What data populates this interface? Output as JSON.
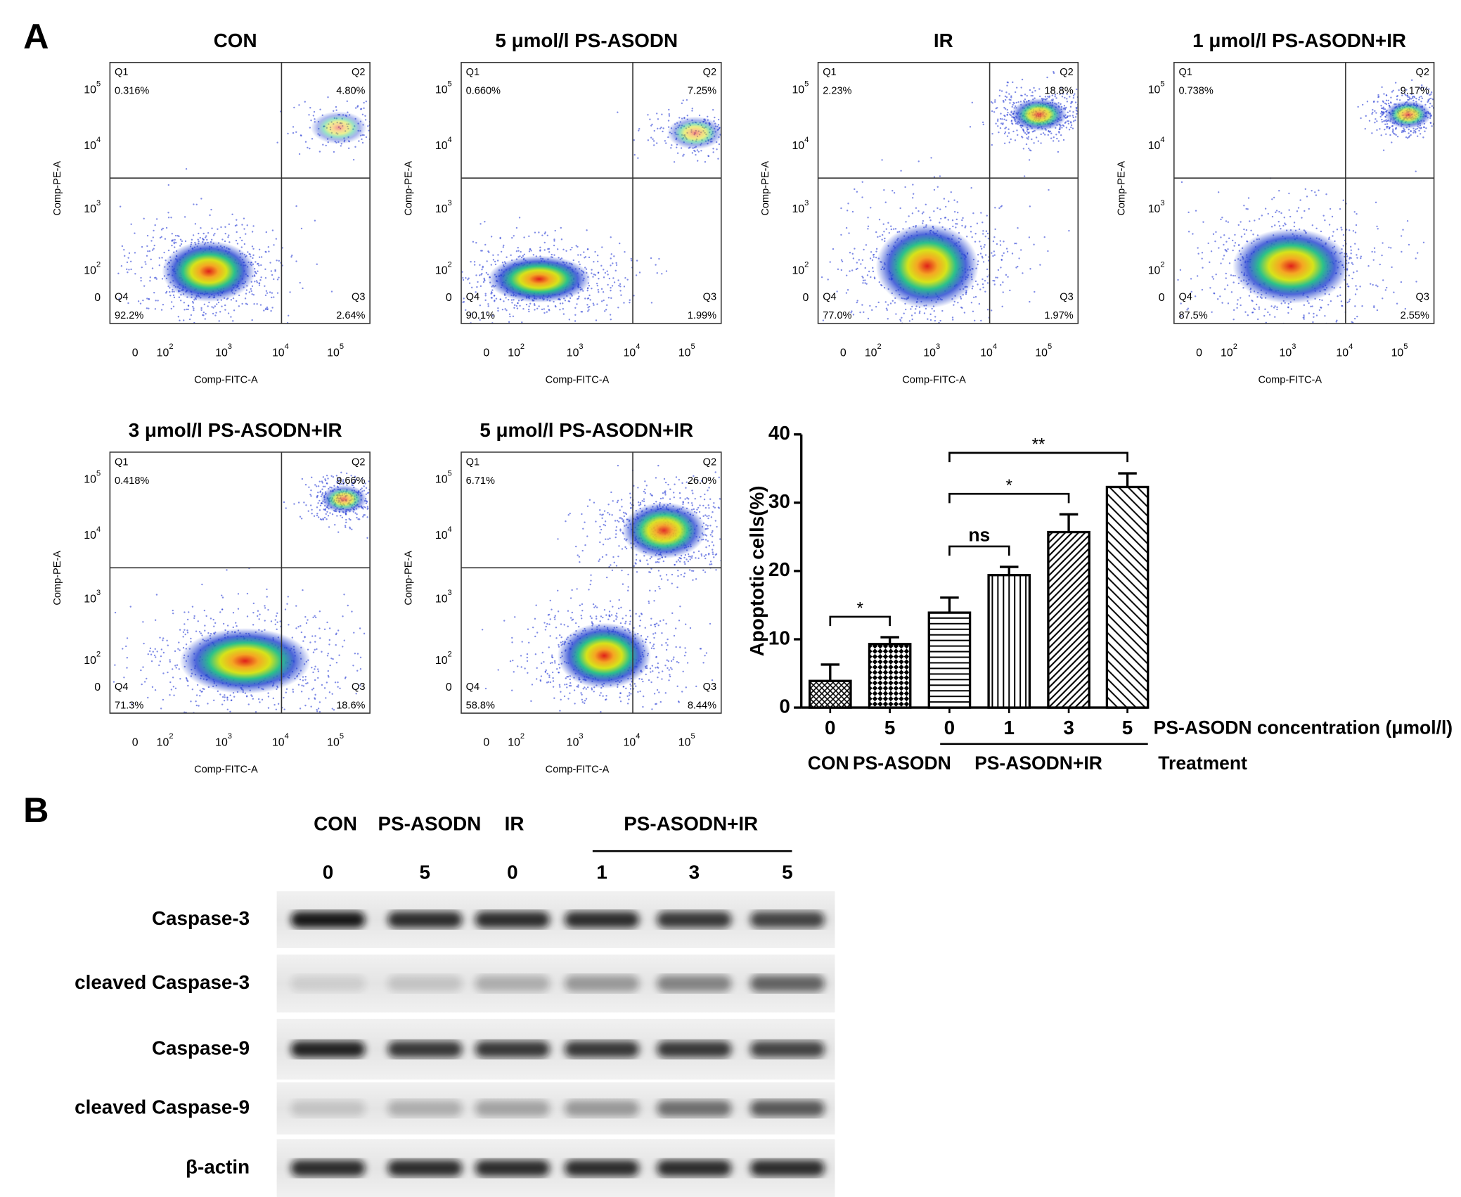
{
  "panel_a": {
    "label": "A",
    "flow_axes": {
      "x_label": "Comp-FITC-A",
      "y_label": "Comp-PE-A",
      "x_ticks": [
        {
          "base": "0"
        },
        {
          "base": "10",
          "exp": "2"
        },
        {
          "base": "10",
          "exp": "3"
        },
        {
          "base": "10",
          "exp": "4"
        },
        {
          "base": "10",
          "exp": "5"
        }
      ],
      "y_ticks": [
        {
          "base": "0"
        },
        {
          "base": "10",
          "exp": "2"
        },
        {
          "base": "10",
          "exp": "3"
        },
        {
          "base": "10",
          "exp": "4"
        },
        {
          "base": "10",
          "exp": "5"
        }
      ],
      "quadrant_names": [
        "Q1",
        "Q2",
        "Q3",
        "Q4"
      ]
    },
    "flow_plots": [
      {
        "title": "CON",
        "q1": "0.316%",
        "q2": "4.80%",
        "q3": "2.64%",
        "q4": "92.2%"
      },
      {
        "title": "5 μmol/l PS-ASODN",
        "q1": "0.660%",
        "q2": "7.25%",
        "q3": "1.99%",
        "q4": "90.1%"
      },
      {
        "title": "IR",
        "q1": "2.23%",
        "q2": "18.8%",
        "q3": "1.97%",
        "q4": "77.0%"
      },
      {
        "title": "1 μmol/l PS-ASODN+IR",
        "q1": "0.738%",
        "q2": "9.17%",
        "q3": "2.55%",
        "q4": "87.5%"
      },
      {
        "title": "3 μmol/l PS-ASODN+IR",
        "q1": "0.418%",
        "q2": "9.66%",
        "q3": "18.6%",
        "q4": "71.3%"
      },
      {
        "title": "5 μmol/l PS-ASODN+IR",
        "q1": "6.71%",
        "q2": "26.0%",
        "q3": "8.44%",
        "q4": "58.8%"
      }
    ]
  },
  "chart_data": {
    "type": "bar",
    "y_label": "Apoptotic cells(%)",
    "x_label": "PS-ASODN concentration (μmol/l)",
    "categories": [
      "0",
      "5",
      "0",
      "1",
      "3",
      "5"
    ],
    "values": [
      3.9,
      9.3,
      13.9,
      19.4,
      25.7,
      32.3
    ],
    "errors": [
      2.4,
      1.0,
      2.2,
      1.2,
      2.6,
      2.0
    ],
    "patterns": [
      "crosshatch",
      "checker",
      "horizontal",
      "vertical",
      "diagonal-dense",
      "diagonal"
    ],
    "color": "#000000",
    "ylim": [
      0,
      40
    ],
    "yticks": [
      0,
      10,
      20,
      30,
      40
    ],
    "treatment_label": "Treatment",
    "treatments": [
      {
        "name": "CON",
        "from": 0,
        "to": 0
      },
      {
        "name": "PS-ASODN",
        "from": 1,
        "to": 1
      },
      {
        "name": "PS-ASODN+IR",
        "from": 2,
        "to": 5
      }
    ],
    "significance": [
      {
        "label": "*",
        "from": 0,
        "to": 1
      },
      {
        "label": "ns",
        "from": 2,
        "to": 3
      },
      {
        "label": "*",
        "from": 2,
        "to": 4
      },
      {
        "label": "**",
        "from": 2,
        "to": 5
      }
    ]
  },
  "panel_b": {
    "label": "B",
    "groups": [
      {
        "name": "CON",
        "from": 0,
        "to": 0
      },
      {
        "name": "PS-ASODN",
        "from": 1,
        "to": 1
      },
      {
        "name": "IR",
        "from": 2,
        "to": 2
      },
      {
        "name": "PS-ASODN+IR",
        "from": 3,
        "to": 5
      }
    ],
    "concentrations": [
      "0",
      "5",
      "0",
      "1",
      "3",
      "5"
    ],
    "rows": [
      {
        "label": "Caspase-3",
        "bands": [
          0.95,
          0.85,
          0.85,
          0.85,
          0.8,
          0.75
        ]
      },
      {
        "label": "cleaved Caspase-3",
        "bands": [
          0.1,
          0.15,
          0.25,
          0.35,
          0.45,
          0.6
        ]
      },
      {
        "label": "Caspase-9",
        "bands": [
          0.9,
          0.8,
          0.8,
          0.8,
          0.8,
          0.75
        ]
      },
      {
        "label": "cleaved Caspase-9",
        "bands": [
          0.15,
          0.25,
          0.3,
          0.35,
          0.55,
          0.65
        ]
      },
      {
        "label": "β-actin",
        "bands": [
          0.85,
          0.85,
          0.85,
          0.85,
          0.85,
          0.85
        ]
      }
    ]
  }
}
